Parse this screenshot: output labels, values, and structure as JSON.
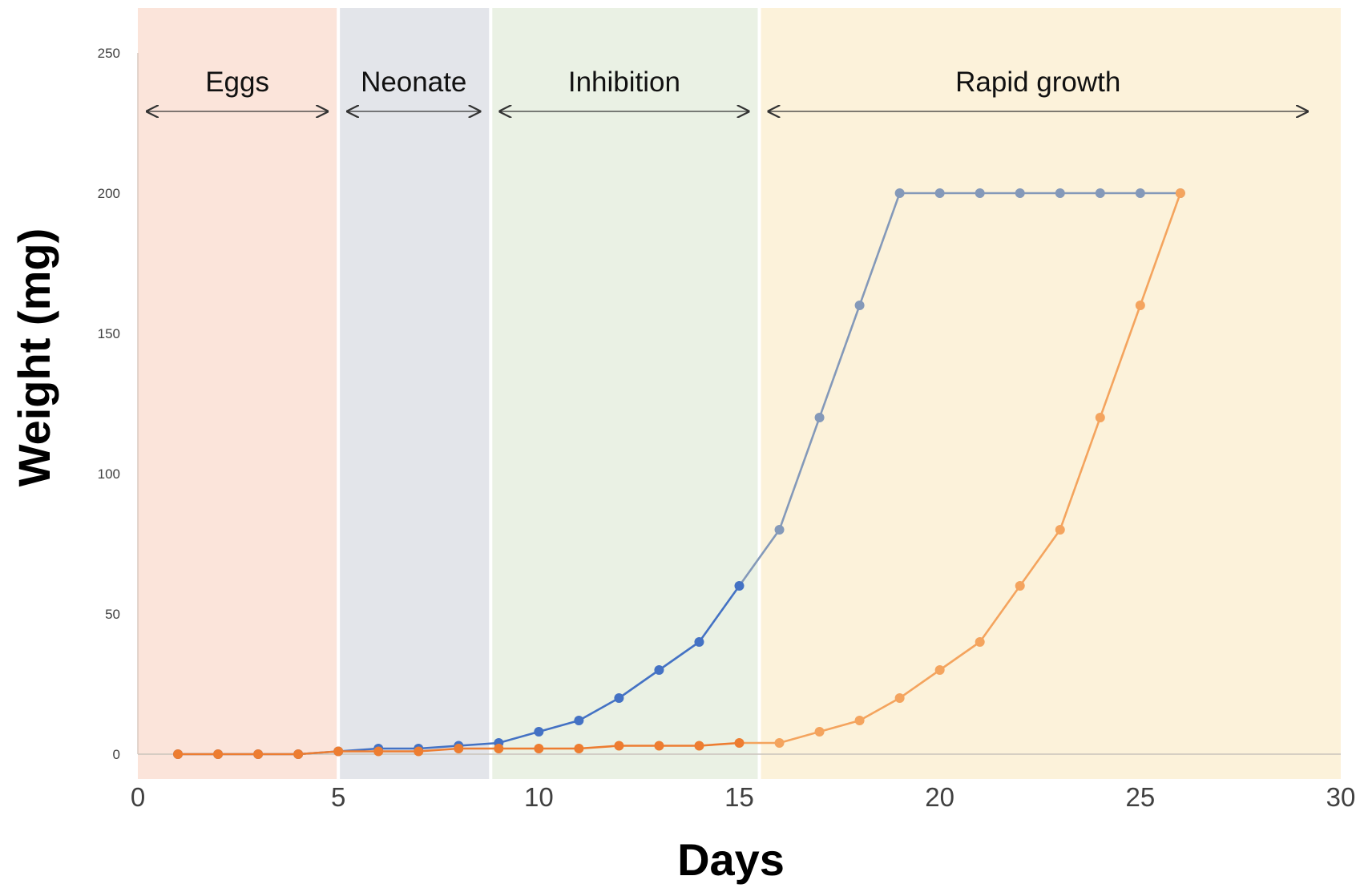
{
  "chart_data": {
    "type": "line",
    "title": "",
    "xlabel": "Days",
    "ylabel": "Weight (mg)",
    "xlim": [
      0,
      30
    ],
    "ylim": [
      0,
      250
    ],
    "x_ticks": [
      "0",
      "5",
      "10",
      "15",
      "20",
      "25",
      "30"
    ],
    "y_ticks": [
      "0",
      "50",
      "100",
      "150",
      "200",
      "250"
    ],
    "grid": false,
    "legend": "none",
    "phases": [
      {
        "label": "Eggs",
        "start": 0,
        "end": 5,
        "color": "#fbe4da"
      },
      {
        "label": "Neonate",
        "start": 5,
        "end": 8.8,
        "color": "#e3e5ea"
      },
      {
        "label": "Inhibition",
        "start": 8.8,
        "end": 15.5,
        "color": "#eaf1e4"
      },
      {
        "label": "Rapid growth",
        "start": 15.5,
        "end": 30,
        "color": "#fcf2da"
      }
    ],
    "series": [
      {
        "color": "#4472c4",
        "color_late": "#8499b9",
        "x": [
          1,
          2,
          3,
          4,
          5,
          6,
          7,
          8,
          9,
          10,
          11,
          12,
          13,
          14,
          15,
          16,
          17,
          18,
          19,
          20,
          21,
          22,
          23,
          24,
          25,
          26
        ],
        "values": [
          0,
          0,
          0,
          0,
          1,
          2,
          2,
          3,
          4,
          8,
          12,
          20,
          30,
          40,
          60,
          80,
          120,
          160,
          200,
          200,
          200,
          200,
          200,
          200,
          200,
          200
        ]
      },
      {
        "color": "#ed7d31",
        "color_late": "#f4a45e",
        "x": [
          1,
          2,
          3,
          4,
          5,
          6,
          7,
          8,
          9,
          10,
          11,
          12,
          13,
          14,
          15,
          16,
          17,
          18,
          19,
          20,
          21,
          22,
          23,
          24,
          25,
          26
        ],
        "values": [
          0,
          0,
          0,
          0,
          1,
          1,
          1,
          2,
          2,
          2,
          2,
          3,
          3,
          3,
          4,
          4,
          8,
          12,
          20,
          30,
          40,
          60,
          80,
          120,
          160,
          200
        ]
      }
    ]
  }
}
